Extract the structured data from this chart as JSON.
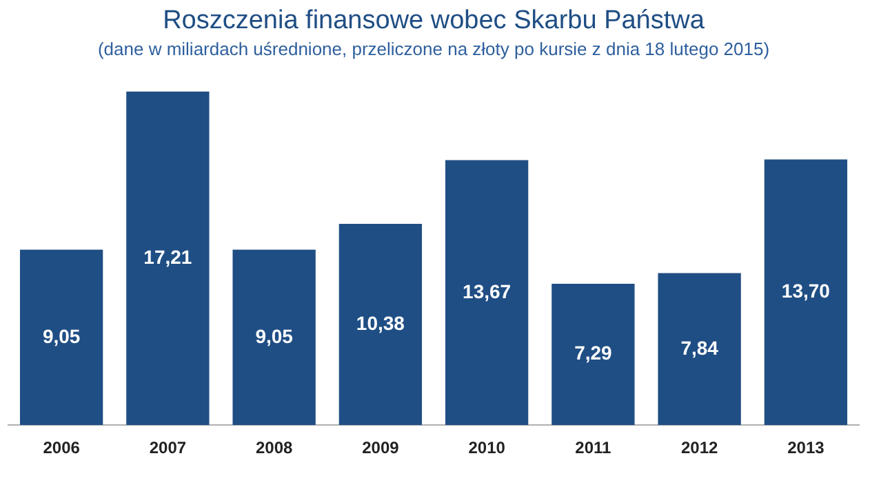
{
  "chart_data": {
    "type": "bar",
    "title": "Roszczenia finansowe wobec Skarbu Państwa",
    "subtitle": "(dane w miliardach uśrednione, przeliczone na złoty po kursie z dnia 18 lutego 2015)",
    "categories": [
      "2006",
      "2007",
      "2008",
      "2009",
      "2010",
      "2011",
      "2012",
      "2013"
    ],
    "values": [
      9.05,
      17.21,
      9.05,
      10.38,
      13.67,
      7.29,
      7.84,
      13.7
    ],
    "value_labels": [
      "9,05",
      "17,21",
      "9,05",
      "10,38",
      "13,67",
      "7,29",
      "7,84",
      "13,70"
    ],
    "color": "#1f4e84",
    "grid": false,
    "legend": false
  }
}
